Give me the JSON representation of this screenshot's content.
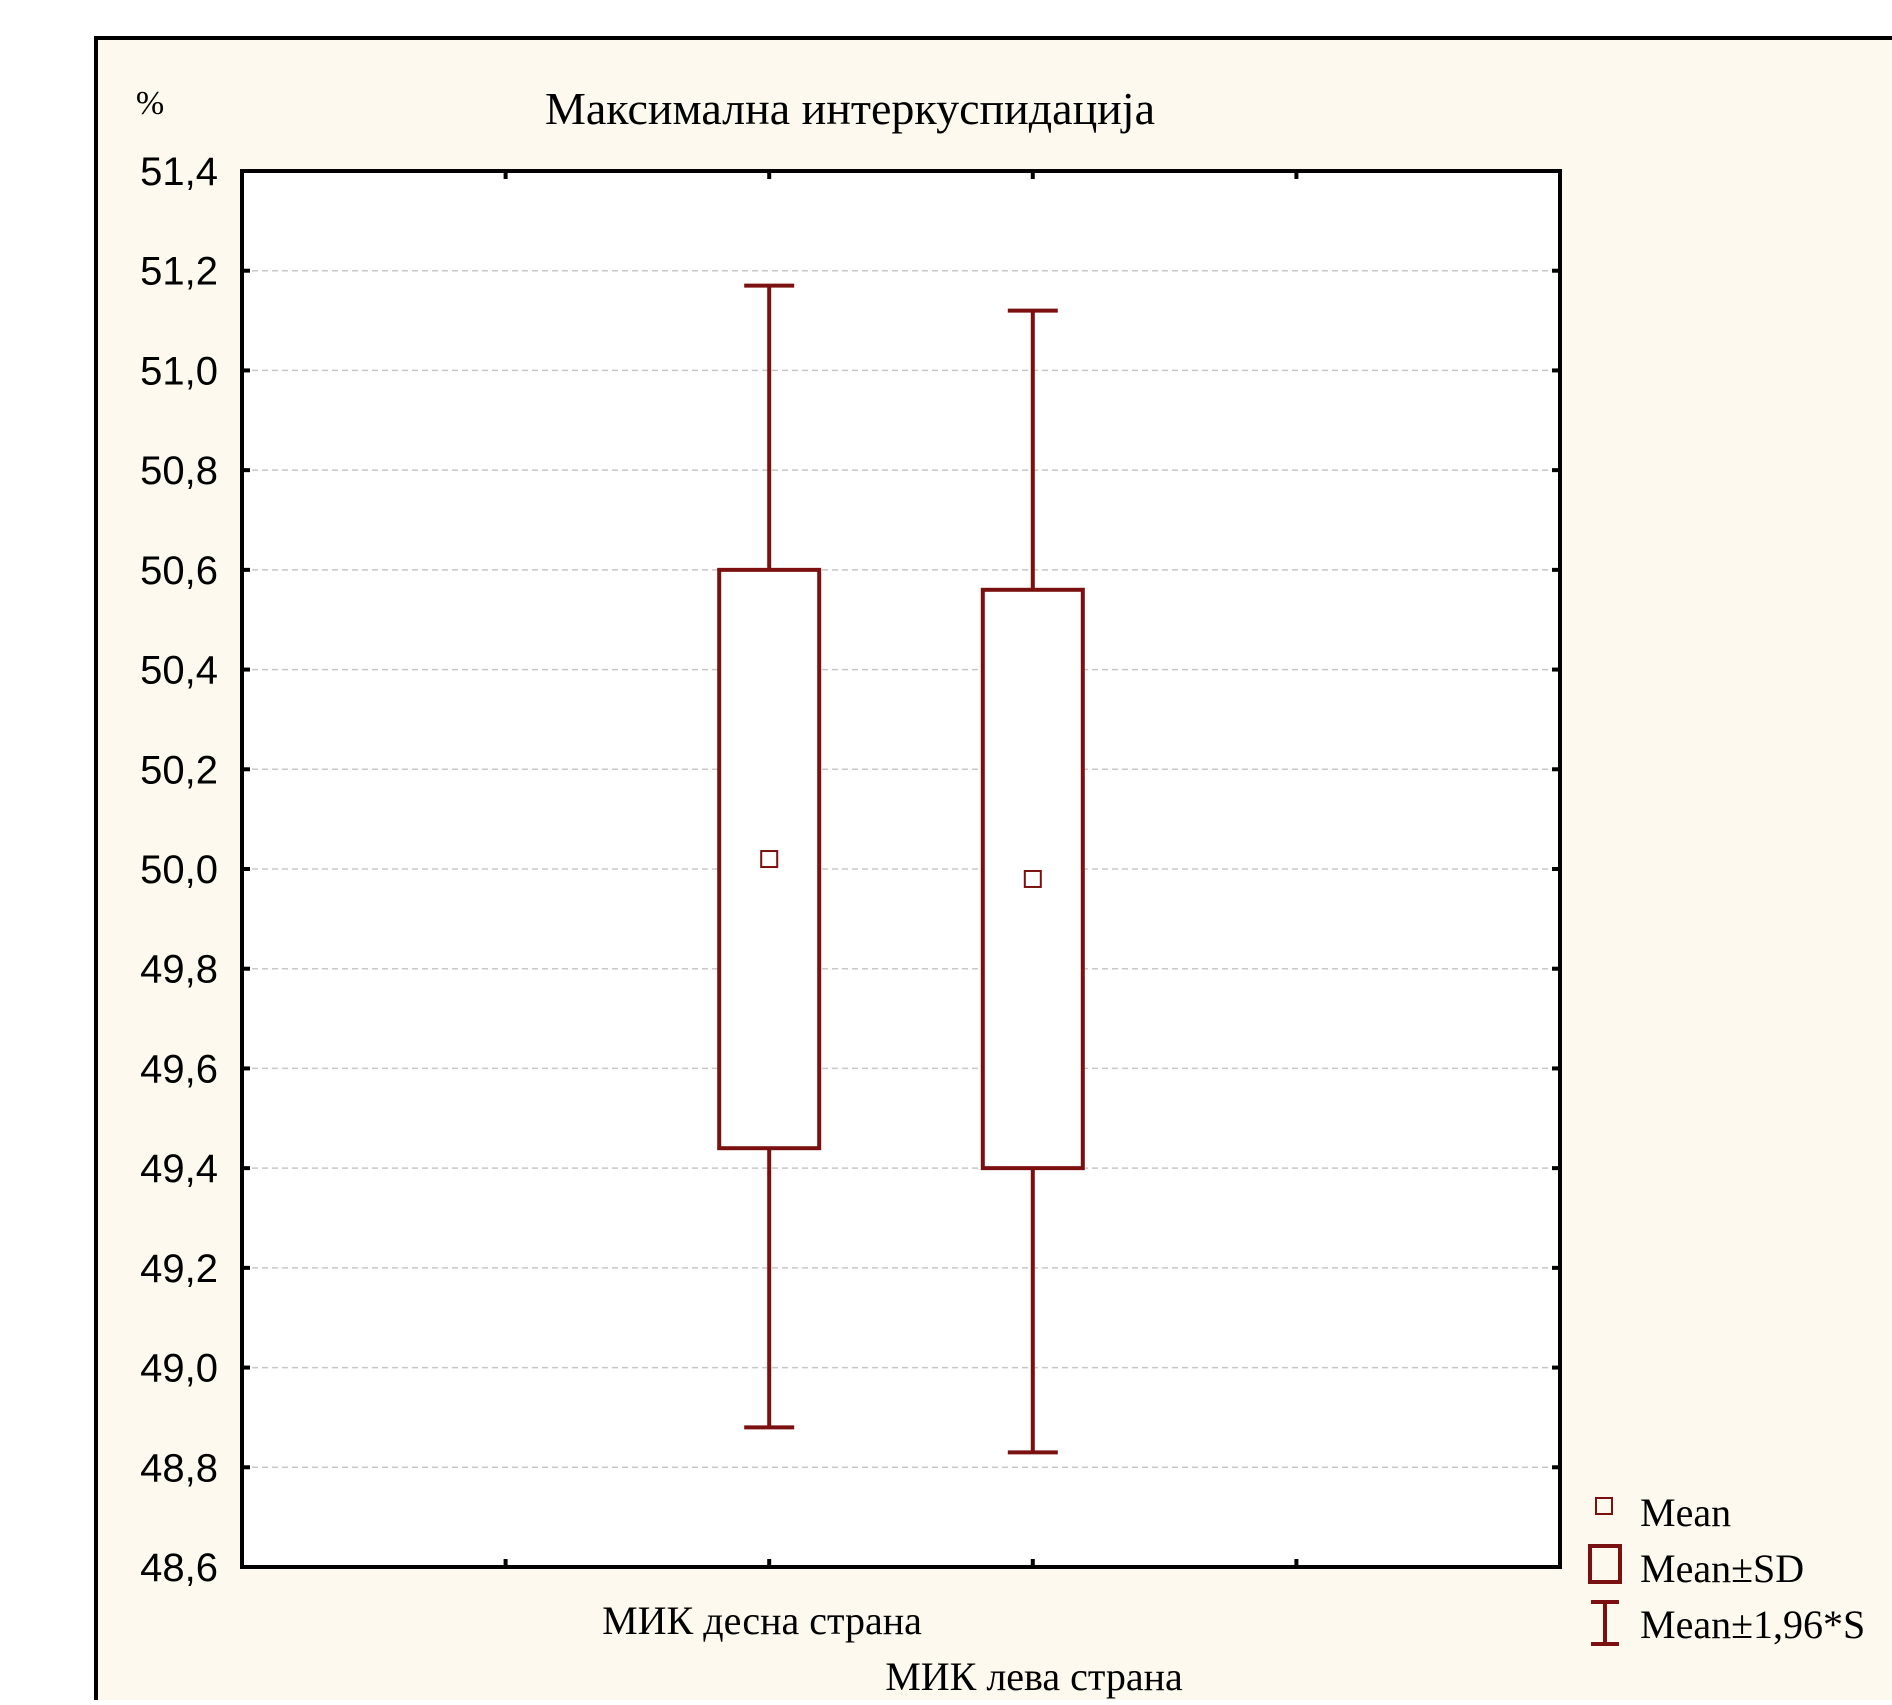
{
  "chart_data": {
    "type": "box",
    "title": "Максимална интеркуспидација",
    "ylabel": "%",
    "xlabel": "",
    "ylim": [
      48.6,
      51.4
    ],
    "yticks": [
      "51,4",
      "51,2",
      "51,0",
      "50,8",
      "50,6",
      "50,4",
      "50,2",
      "50,0",
      "49,8",
      "49,6",
      "49,4",
      "49,2",
      "49,0",
      "48,8",
      "48,6"
    ],
    "grid": true,
    "legend_position": "bottom-right",
    "categories": [
      "МИК десна страна",
      "МИК лева страна"
    ],
    "series": [
      {
        "category": "МИК десна страна",
        "mean": 50.02,
        "sd_low": 49.44,
        "sd_high": 50.6,
        "ci_low": 48.88,
        "ci_high": 51.17
      },
      {
        "category": "МИК лева страна",
        "mean": 49.98,
        "sd_low": 49.4,
        "sd_high": 50.56,
        "ci_low": 48.83,
        "ci_high": 51.12
      }
    ],
    "legend": [
      {
        "marker": "small-square",
        "label": "Mean"
      },
      {
        "marker": "box",
        "label": "Mean±SD"
      },
      {
        "marker": "whisker",
        "label": "Mean±1,96*S"
      }
    ],
    "colors": {
      "series": "#7b1010",
      "panel_background": "#fdf9ee",
      "plot_background": "#ffffff",
      "grid": "#c8c8c8",
      "axis": "#000000"
    }
  }
}
